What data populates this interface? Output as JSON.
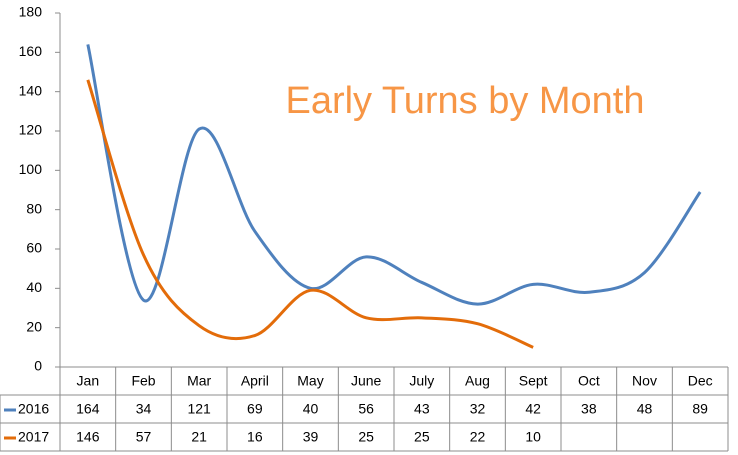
{
  "chart_data": {
    "type": "line",
    "title": "Early Turns by Month",
    "categories": [
      "Jan",
      "Feb",
      "Mar",
      "April",
      "May",
      "June",
      "July",
      "Aug",
      "Sept",
      "Oct",
      "Nov",
      "Dec"
    ],
    "series": [
      {
        "name": "2016",
        "color": "#4f81bd",
        "values": [
          164,
          34,
          121,
          69,
          40,
          56,
          43,
          32,
          42,
          38,
          48,
          89
        ]
      },
      {
        "name": "2017",
        "color": "#e36c0a",
        "values": [
          146,
          57,
          21,
          16,
          39,
          25,
          25,
          22,
          10,
          null,
          null,
          null
        ]
      }
    ],
    "ylim": [
      0,
      180
    ],
    "yticks": [
      0,
      20,
      40,
      60,
      80,
      100,
      120,
      140,
      160,
      180
    ],
    "smooth": true,
    "title_color": "#f79646",
    "data_table": true
  }
}
